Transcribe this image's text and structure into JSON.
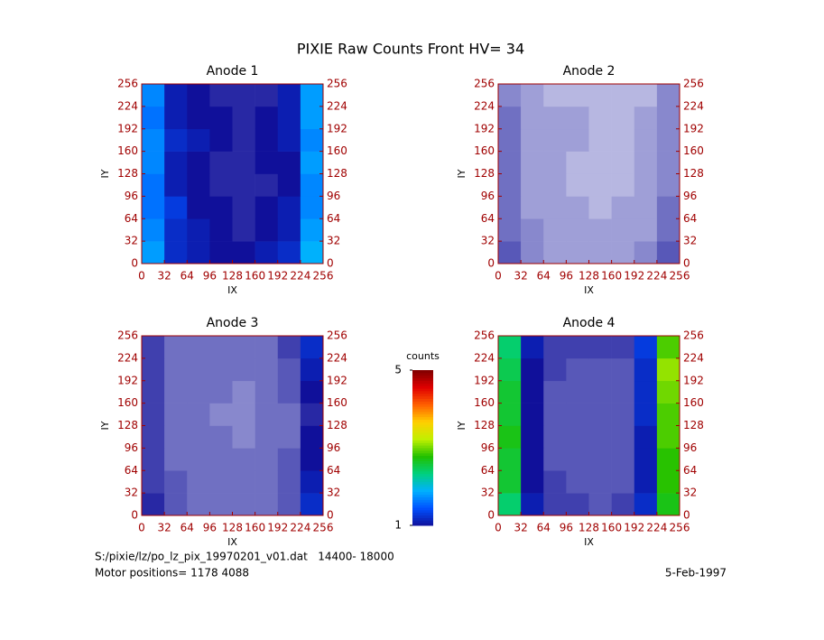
{
  "title": "PIXIE Raw Counts Front HV= 34",
  "chart_data": [
    {
      "type": "heatmap",
      "title": "Anode 1",
      "xlabel": "IX",
      "ylabel": "IY",
      "xlim": [
        0,
        256
      ],
      "ylim": [
        0,
        256
      ],
      "xticks": [
        0,
        32,
        64,
        96,
        128,
        160,
        192,
        224,
        256
      ],
      "yticks": [
        0,
        32,
        64,
        96,
        128,
        160,
        192,
        224,
        256
      ],
      "z": [
        [
          1.8,
          1.2,
          1.1,
          1.0,
          1.0,
          1.1,
          1.2,
          1.9
        ],
        [
          1.7,
          1.2,
          1.1,
          1.0,
          0.9,
          1.0,
          1.1,
          1.8
        ],
        [
          1.6,
          1.3,
          1.0,
          1.0,
          0.9,
          1.0,
          1.1,
          1.7
        ],
        [
          1.6,
          1.1,
          1.0,
          0.9,
          0.9,
          0.9,
          1.0,
          1.7
        ],
        [
          1.7,
          1.1,
          1.0,
          0.9,
          0.9,
          1.0,
          1.0,
          1.8
        ],
        [
          1.7,
          1.2,
          1.1,
          1.0,
          0.9,
          1.0,
          1.1,
          1.7
        ],
        [
          1.6,
          1.1,
          1.0,
          1.0,
          0.9,
          1.0,
          1.1,
          1.8
        ],
        [
          1.7,
          1.1,
          1.0,
          0.9,
          0.9,
          0.9,
          1.1,
          1.8
        ]
      ]
    },
    {
      "type": "heatmap",
      "title": "Anode 2",
      "xlabel": "IX",
      "ylabel": "IY",
      "xlim": [
        0,
        256
      ],
      "ylim": [
        0,
        256
      ],
      "xticks": [
        0,
        32,
        64,
        96,
        128,
        160,
        192,
        224,
        256
      ],
      "yticks": [
        0,
        32,
        64,
        96,
        128,
        160,
        192,
        224,
        256
      ],
      "z": [
        [
          0.7,
          0.5,
          0.4,
          0.4,
          0.4,
          0.4,
          0.5,
          0.7
        ],
        [
          0.6,
          0.5,
          0.4,
          0.4,
          0.4,
          0.4,
          0.4,
          0.6
        ],
        [
          0.6,
          0.4,
          0.4,
          0.4,
          0.3,
          0.4,
          0.4,
          0.6
        ],
        [
          0.6,
          0.4,
          0.4,
          0.3,
          0.3,
          0.3,
          0.4,
          0.5
        ],
        [
          0.6,
          0.4,
          0.4,
          0.3,
          0.3,
          0.3,
          0.4,
          0.5
        ],
        [
          0.6,
          0.4,
          0.4,
          0.4,
          0.3,
          0.3,
          0.4,
          0.5
        ],
        [
          0.6,
          0.4,
          0.4,
          0.4,
          0.3,
          0.3,
          0.4,
          0.5
        ],
        [
          0.5,
          0.4,
          0.3,
          0.3,
          0.3,
          0.3,
          0.3,
          0.5
        ]
      ]
    },
    {
      "type": "heatmap",
      "title": "Anode 3",
      "xlabel": "IX",
      "ylabel": "IY",
      "xlim": [
        0,
        256
      ],
      "ylim": [
        0,
        256
      ],
      "xticks": [
        0,
        32,
        64,
        96,
        128,
        160,
        192,
        224,
        256
      ],
      "yticks": [
        0,
        32,
        64,
        96,
        128,
        160,
        192,
        224,
        256
      ],
      "z": [
        [
          0.9,
          0.7,
          0.6,
          0.6,
          0.6,
          0.6,
          0.7,
          1.2
        ],
        [
          0.8,
          0.7,
          0.6,
          0.6,
          0.6,
          0.6,
          0.7,
          1.1
        ],
        [
          0.8,
          0.6,
          0.6,
          0.6,
          0.6,
          0.6,
          0.7,
          1.0
        ],
        [
          0.8,
          0.6,
          0.6,
          0.6,
          0.5,
          0.6,
          0.6,
          1.0
        ],
        [
          0.8,
          0.6,
          0.6,
          0.5,
          0.5,
          0.6,
          0.6,
          0.9
        ],
        [
          0.8,
          0.6,
          0.6,
          0.6,
          0.5,
          0.6,
          0.7,
          1.0
        ],
        [
          0.8,
          0.6,
          0.6,
          0.6,
          0.6,
          0.6,
          0.7,
          1.1
        ],
        [
          0.8,
          0.6,
          0.6,
          0.6,
          0.6,
          0.6,
          0.8,
          1.2
        ]
      ]
    },
    {
      "type": "heatmap",
      "title": "Anode 4",
      "xlabel": "IX",
      "ylabel": "IY",
      "xlim": [
        0,
        256
      ],
      "ylim": [
        0,
        256
      ],
      "xticks": [
        0,
        32,
        64,
        96,
        128,
        160,
        192,
        224,
        256
      ],
      "yticks": [
        0,
        32,
        64,
        96,
        128,
        160,
        192,
        224,
        256
      ],
      "z": [
        [
          2.4,
          1.1,
          0.8,
          0.8,
          0.7,
          0.8,
          1.2,
          2.7
        ],
        [
          2.6,
          1.0,
          0.8,
          0.7,
          0.7,
          0.7,
          1.1,
          2.8
        ],
        [
          2.6,
          1.0,
          0.7,
          0.7,
          0.7,
          0.7,
          1.1,
          2.8
        ],
        [
          2.7,
          1.0,
          0.7,
          0.7,
          0.7,
          0.7,
          1.1,
          2.9
        ],
        [
          2.6,
          1.0,
          0.7,
          0.7,
          0.7,
          0.7,
          1.2,
          2.9
        ],
        [
          2.6,
          1.0,
          0.7,
          0.7,
          0.7,
          0.7,
          1.2,
          3.0
        ],
        [
          2.5,
          1.0,
          0.8,
          0.7,
          0.7,
          0.7,
          1.2,
          3.1
        ],
        [
          2.4,
          1.1,
          0.8,
          0.8,
          0.8,
          0.8,
          1.3,
          2.9
        ]
      ]
    }
  ],
  "colorbar": {
    "title": "counts",
    "zlim": [
      1,
      5
    ],
    "zticks": [
      1,
      5
    ],
    "colormap": [
      "#10109a",
      "#0050ff",
      "#00b0ff",
      "#00d080",
      "#20c000",
      "#c0f000",
      "#ffd000",
      "#ff6000",
      "#e00000",
      "#800000"
    ]
  },
  "footer": {
    "file": "S:/pixie/lz/po_lz_pix_19970201_v01.dat   14400- 18000",
    "motor": "Motor positions= 1178 4088",
    "date": "5-Feb-1997"
  }
}
